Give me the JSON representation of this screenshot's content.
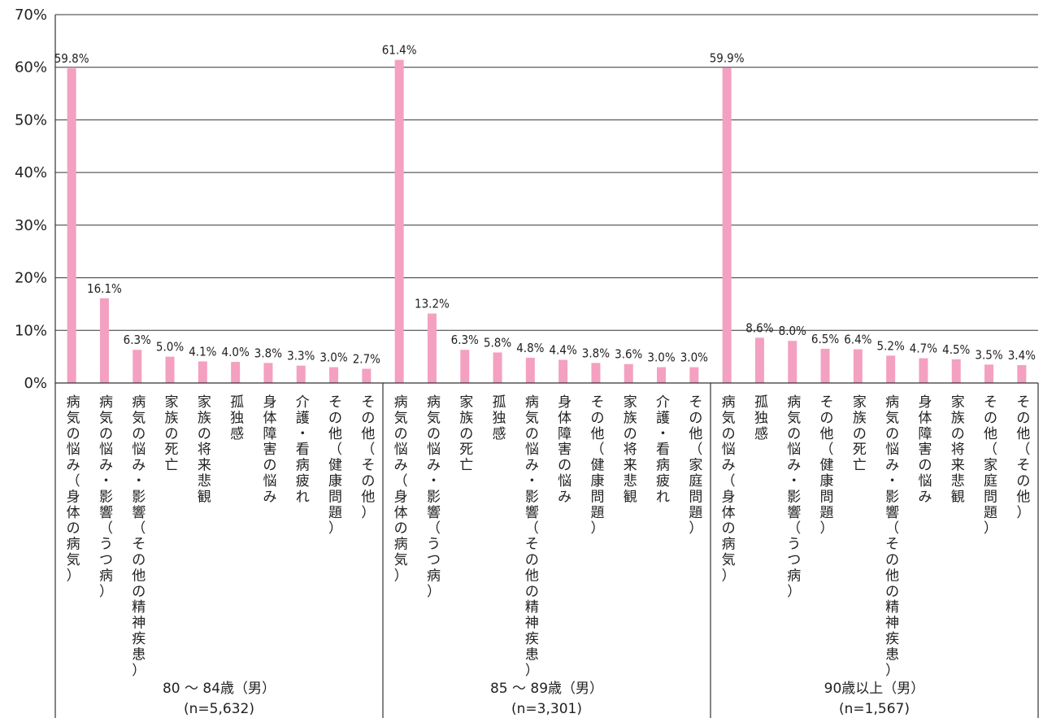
{
  "chart_data": {
    "type": "bar",
    "ylim": [
      0,
      70
    ],
    "yticks": [
      "0%",
      "10%",
      "20%",
      "30%",
      "40%",
      "50%",
      "60%",
      "70%"
    ],
    "grid": true,
    "bar_color": "#f4a0c0",
    "groups": [
      {
        "name": "80 ～ 84歳（男）",
        "n": "(n=5,632)",
        "categories": [
          "病気の悩み（身体の病気）",
          "病気の悩み・影響（うつ病）",
          "病気の悩み・影響（その他の精神疾患）",
          "家族の死亡",
          "家族の将来悲観",
          "孤独感",
          "身体障害の悩み",
          "介護・看病疲れ",
          "その他（健康問題）",
          "その他（その他）"
        ],
        "values": [
          59.8,
          16.1,
          6.3,
          5.0,
          4.1,
          4.0,
          3.8,
          3.3,
          3.0,
          2.7
        ],
        "labels": [
          "59.8%",
          "16.1%",
          "6.3%",
          "5.0%",
          "4.1%",
          "4.0%",
          "3.8%",
          "3.3%",
          "3.0%",
          "2.7%"
        ]
      },
      {
        "name": "85 ～ 89歳（男）",
        "n": "(n=3,301)",
        "categories": [
          "病気の悩み（身体の病気）",
          "病気の悩み・影響（うつ病）",
          "家族の死亡",
          "孤独感",
          "病気の悩み・影響（その他の精神疾患）",
          "身体障害の悩み",
          "その他（健康問題）",
          "家族の将来悲観",
          "介護・看病疲れ",
          "その他（家庭問題）"
        ],
        "values": [
          61.4,
          13.2,
          6.3,
          5.8,
          4.8,
          4.4,
          3.8,
          3.6,
          3.0,
          3.0
        ],
        "labels": [
          "61.4%",
          "13.2%",
          "6.3%",
          "5.8%",
          "4.8%",
          "4.4%",
          "3.8%",
          "3.6%",
          "3.0%",
          "3.0%"
        ]
      },
      {
        "name": "90歳以上（男）",
        "n": "(n=1,567)",
        "categories": [
          "病気の悩み（身体の病気）",
          "孤独感",
          "病気の悩み・影響（うつ病）",
          "その他（健康問題）",
          "家族の死亡",
          "病気の悩み・影響（その他の精神疾患）",
          "身体障害の悩み",
          "家族の将来悲観",
          "その他（家庭問題）",
          "その他（その他）"
        ],
        "values": [
          59.9,
          8.6,
          8.0,
          6.5,
          6.4,
          5.2,
          4.7,
          4.5,
          3.5,
          3.4
        ],
        "labels": [
          "59.9%",
          "8.6%",
          "8.0%",
          "6.5%",
          "6.4%",
          "5.2%",
          "4.7%",
          "4.5%",
          "3.5%",
          "3.4%"
        ]
      }
    ]
  }
}
